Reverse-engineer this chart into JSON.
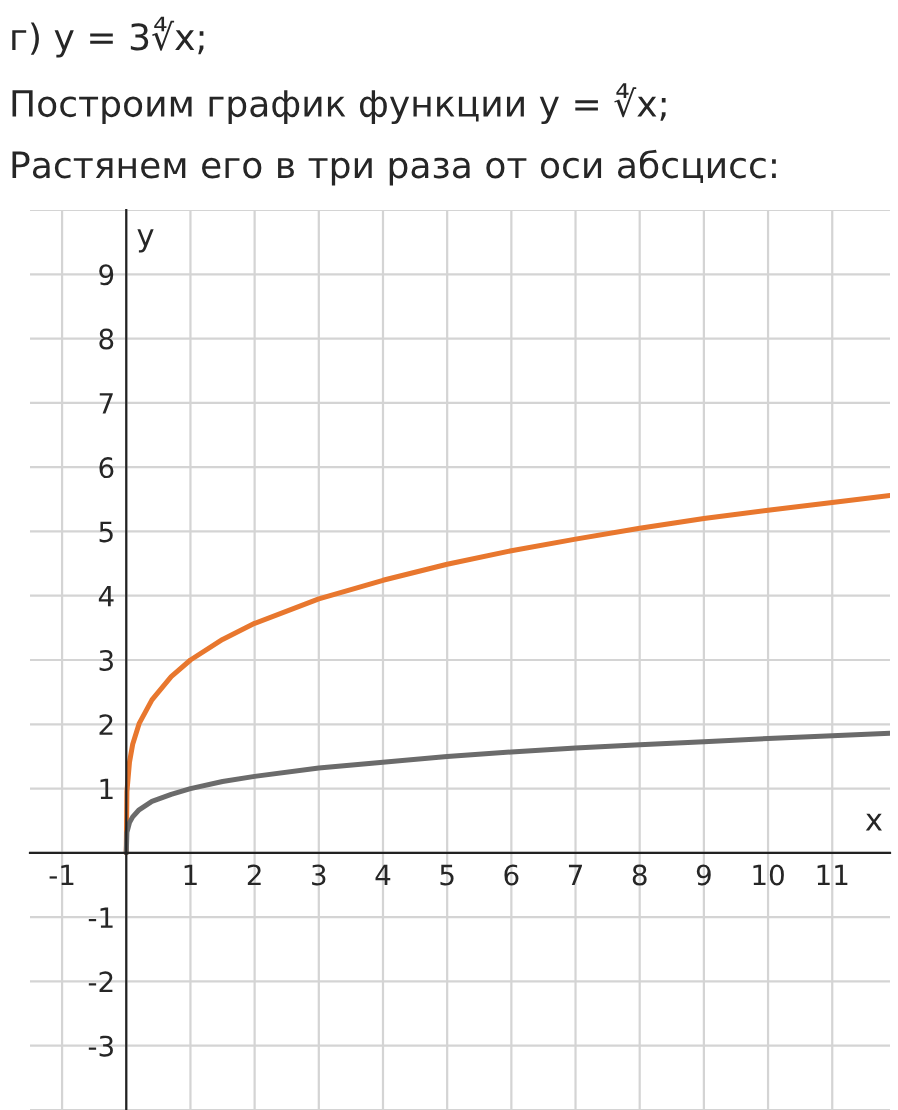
{
  "chart_data": {
    "type": "line",
    "title": "г) y = 3∜x;",
    "subtitle": "Построим график функции y = ∜x;",
    "annotations": [
      "Растянем его в три раза от оси абсцисс:"
    ],
    "xlabel": "x",
    "ylabel": "y",
    "x": [
      0,
      0.01,
      0.05,
      0.1,
      0.2,
      0.4,
      0.7,
      1,
      1.5,
      2,
      3,
      4,
      5,
      6,
      7,
      8,
      9,
      10,
      11,
      11.9
    ],
    "series": [
      {
        "color": "#e8772e",
        "values": [
          0,
          0.95,
          1.41,
          1.69,
          2.01,
          2.38,
          2.74,
          3,
          3.32,
          3.57,
          3.95,
          4.24,
          4.49,
          4.7,
          4.88,
          5.05,
          5.2,
          5.33,
          5.45,
          5.56
        ]
      },
      {
        "color": "#6b6b6b",
        "values": [
          0,
          0.32,
          0.47,
          0.56,
          0.67,
          0.8,
          0.91,
          1,
          1.11,
          1.19,
          1.32,
          1.41,
          1.5,
          1.57,
          1.63,
          1.68,
          1.73,
          1.78,
          1.82,
          1.86
        ]
      }
    ],
    "xlim": [
      -1.5,
      11.9
    ],
    "ylim": [
      -4,
      10
    ],
    "xticks": [
      -1,
      1,
      2,
      3,
      4,
      5,
      6,
      7,
      8,
      9,
      10,
      11
    ],
    "yticks": [
      -3,
      -2,
      -1,
      1,
      2,
      3,
      4,
      5,
      6,
      7,
      8,
      9
    ],
    "grid": true,
    "legend": false,
    "marker": "none",
    "line_style": "solid"
  }
}
